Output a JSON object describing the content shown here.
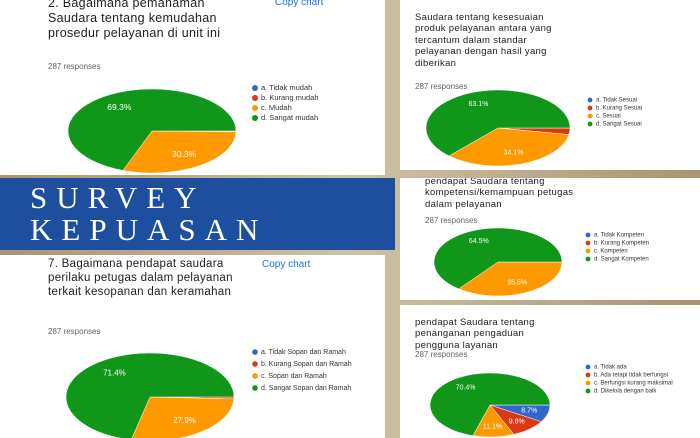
{
  "banner": {
    "lines": [
      "SURVEY",
      "KEPUASAN"
    ]
  },
  "chart_data": [
    {
      "type": "pie",
      "title": "2. Bagaimana pemahaman Saudara tentang kemudahan prosedur pelayanan di unit ini",
      "action": "Copy chart",
      "subtitle": "287 responses",
      "categories": [
        "a. Tidak mudah",
        "b. Kurang mudah",
        "c. Mudah",
        "d. Sangat mudah"
      ],
      "values": [
        0,
        0.3,
        30.3,
        69.3
      ],
      "value_labels": [
        null,
        null,
        "30.3%",
        "69.3%"
      ],
      "colors": [
        "#3366cc",
        "#dc3912",
        "#ff9900",
        "#109618"
      ]
    },
    {
      "type": "pie",
      "title": "Saudara tentang kesesuaian produk pelayanan antara yang tercantum dalam standar pelayanan dengan hasil yang diberikan",
      "subtitle": "287 responses",
      "categories": [
        "a. Tidak Sesuai",
        "b. Kurang Sesuai",
        "c. Sesuai",
        "d. Sangat Sesuai"
      ],
      "values": [
        0,
        2.8,
        34.1,
        63.1
      ],
      "value_labels": [
        null,
        null,
        "34.1%",
        "63.1%"
      ],
      "colors": [
        "#3366cc",
        "#dc3912",
        "#ff9900",
        "#109618"
      ]
    },
    {
      "type": "pie",
      "title": "pendapat Saudara tentang kompetensi/kemampuan petugas dalam pelayanan",
      "subtitle": "287 responses",
      "categories": [
        "a. Tidak Kompeten",
        "b. Kurang Kompeten",
        "c. Kompeten",
        "d. Sangat Kompeten"
      ],
      "values": [
        0,
        0,
        35.5,
        64.5
      ],
      "value_labels": [
        null,
        null,
        "35.5%",
        "64.5%"
      ],
      "colors": [
        "#3366cc",
        "#dc3912",
        "#ff9900",
        "#109618"
      ]
    },
    {
      "type": "pie",
      "title": "7. Bagaimana pendapat saudara perilaku petugas dalam pelayanan terkait kesopanan dan keramahan",
      "action": "Copy chart",
      "subtitle": "287 responses",
      "categories": [
        "a. Tidak Sopan dan Ramah",
        "b. Kurang Sopan dan Ramah",
        "c. Sopan dan Ramah",
        "d. Sangat Sopan dan Ramah"
      ],
      "values": [
        0,
        0.7,
        27.9,
        71.4
      ],
      "value_labels": [
        null,
        null,
        "27.9%",
        "71.4%"
      ],
      "colors": [
        "#3366cc",
        "#dc3912",
        "#ff9900",
        "#109618"
      ]
    },
    {
      "type": "pie",
      "title": "pendapat Saudara tentang penanganan pengaduan pengguna layanan",
      "subtitle": "287 responses",
      "categories": [
        "a. Tidak ada",
        "b. Ada tetapi tidak berfungsi",
        "c. Berfungsi kurang maksimal",
        "d. Dikelola dengan baik"
      ],
      "values": [
        8.7,
        9.8,
        11.1,
        70.4
      ],
      "value_labels": [
        "8.7%",
        "9.8%",
        "11.1%",
        "70.4%"
      ],
      "colors": [
        "#3366cc",
        "#dc3912",
        "#ff9900",
        "#109618"
      ]
    }
  ]
}
